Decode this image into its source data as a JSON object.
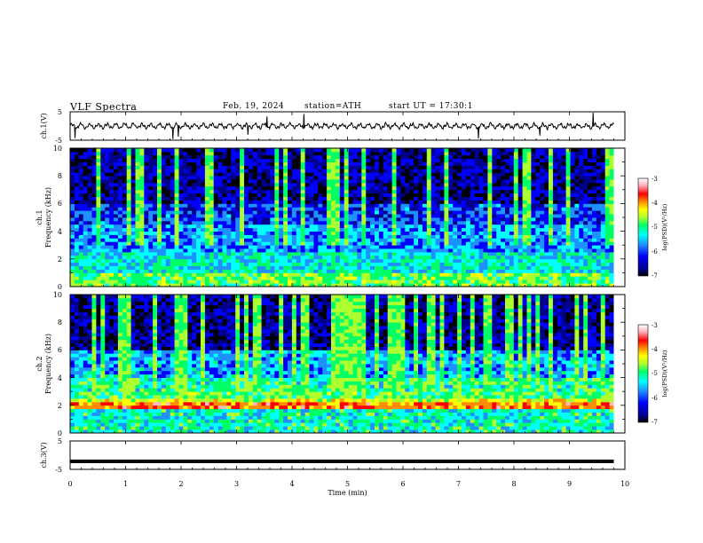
{
  "header": {
    "title": "VLF Spectra",
    "date": "Feb. 19, 2024",
    "station": "station=ATH",
    "start": "start UT = 17:30:1"
  },
  "chart_data": [
    {
      "type": "line",
      "panel": "ch1-waveform",
      "ylabel": "ch.1(V)",
      "ylim": [
        -5,
        5
      ],
      "yticks": [
        "5",
        "-5"
      ],
      "xlim": [
        0,
        10
      ],
      "trace": "oscillating signal around about 0 V, amplitude ~1 V, with sparse impulsive spikes",
      "color": "#000000"
    },
    {
      "type": "heatmap",
      "panel": "ch1-spectrogram",
      "ylabel_line1": "ch.1",
      "ylabel_line2": "Frequency (kHz)",
      "ylim": [
        0,
        10
      ],
      "yticks": [
        "0",
        "2",
        "4",
        "6",
        "8",
        "10"
      ],
      "xlim": [
        0,
        9.8
      ],
      "colorbar": {
        "label": "log(PSD)(V²/Hz)",
        "ticks": [
          "-3",
          "-4",
          "-5",
          "-6",
          "-7"
        ],
        "range": [
          -7,
          -3
        ]
      },
      "dominant_level_low": -6,
      "dominant_level_high": -6.6
    },
    {
      "type": "heatmap",
      "panel": "ch2-spectrogram",
      "ylabel_line1": "ch.2",
      "ylabel_line2": "Frequency (kHz)",
      "ylim": [
        0,
        10
      ],
      "yticks": [
        "0",
        "2",
        "4",
        "6",
        "8",
        "10"
      ],
      "xlim": [
        0,
        9.8
      ],
      "colorbar": {
        "label": "log(PSD)(V²/Hz)",
        "ticks": [
          "-3",
          "-4",
          "-5",
          "-6",
          "-7"
        ],
        "range": [
          -7,
          -3
        ]
      },
      "strong_line_khz": 2.0,
      "strong_line_level": -4
    },
    {
      "type": "line",
      "panel": "ch3-waveform",
      "ylabel": "ch.3(V)",
      "ylim": [
        -5,
        5
      ],
      "yticks": [
        "5",
        "-5"
      ],
      "xlim": [
        0,
        10
      ],
      "level_volts": -2.2,
      "color": "#000000"
    }
  ],
  "xaxis": {
    "label": "Time (min)",
    "ticks": [
      "0",
      "1",
      "2",
      "3",
      "4",
      "5",
      "6",
      "7",
      "8",
      "9",
      "10"
    ]
  },
  "colors": {
    "scale": [
      "#000000",
      "#00008b",
      "#0000ff",
      "#1e90ff",
      "#00ffff",
      "#00ff66",
      "#adff2f",
      "#ffff00",
      "#ff8c00",
      "#ff0000",
      "#ffb6c1",
      "#ffffff"
    ]
  }
}
